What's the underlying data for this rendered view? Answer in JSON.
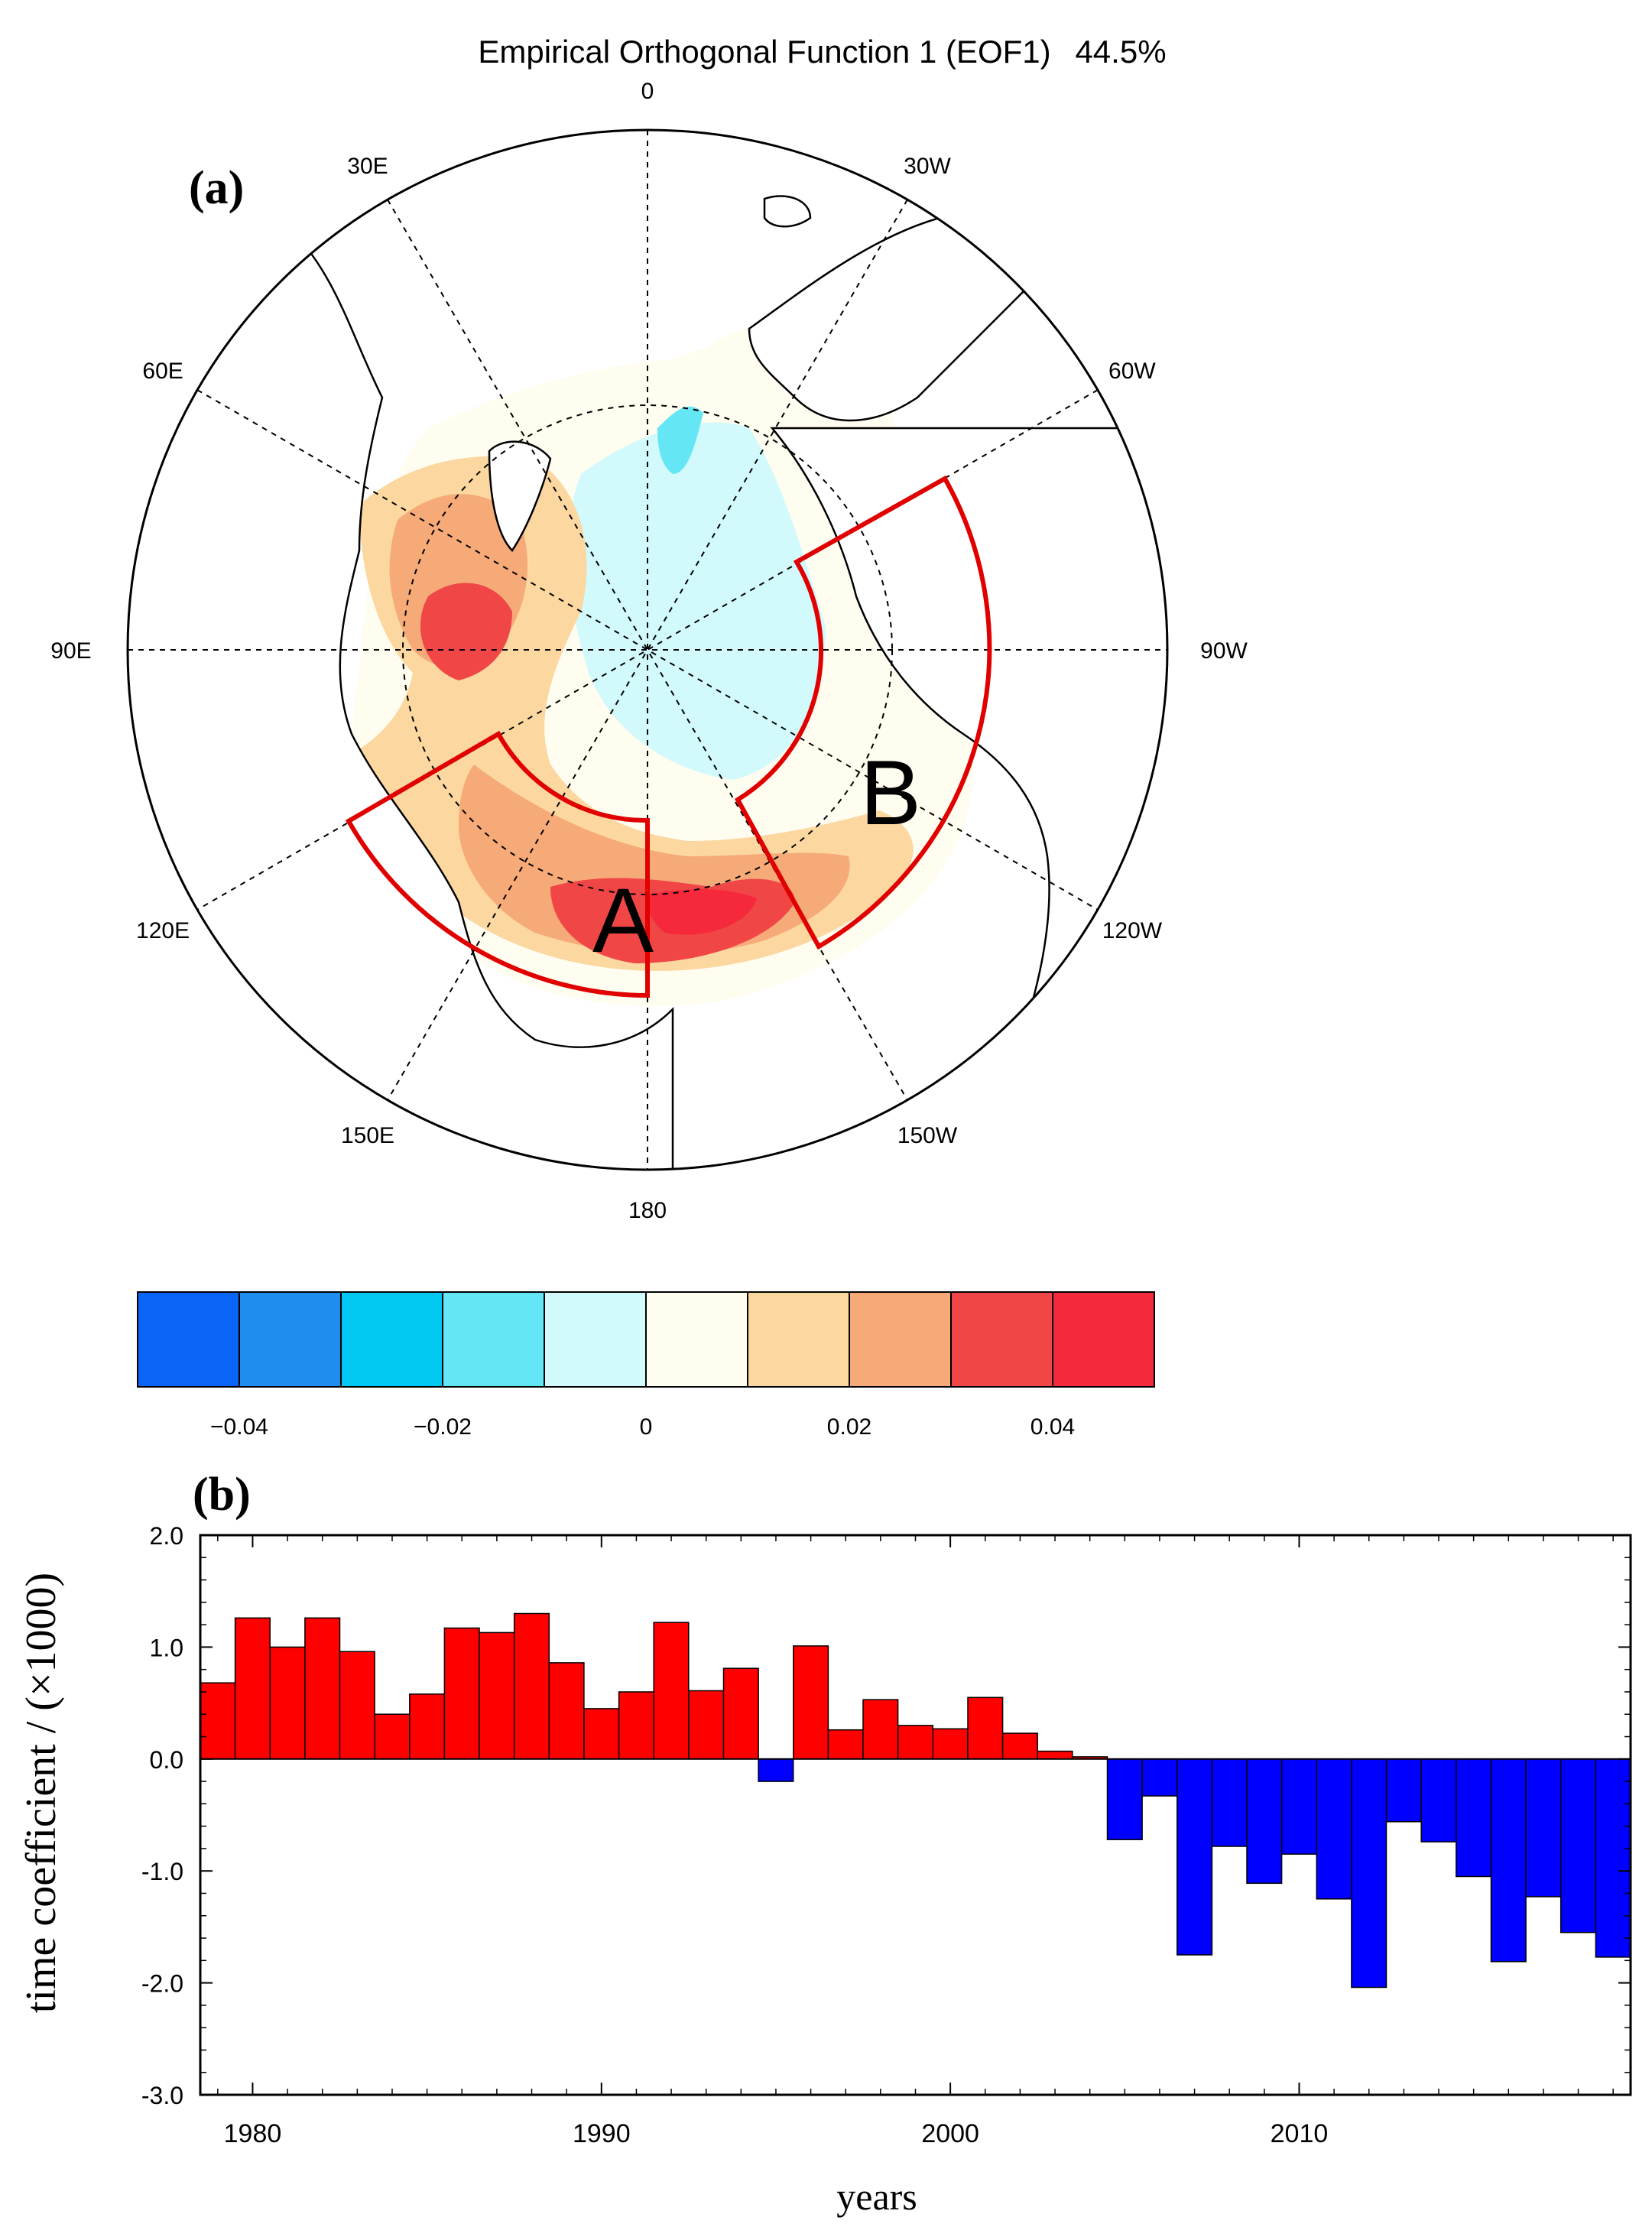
{
  "figure": {
    "title": "Empirical Orthogonal Function 1 (EOF1)",
    "variance": "44.5%"
  },
  "chart_data": [
    {
      "type": "heatmap",
      "panel_label": "(a)",
      "projection": "north-polar-stereographic",
      "title": "Empirical Orthogonal Function 1 (EOF1)",
      "explained_variance": "44.5%",
      "longitude_labels": [
        "0",
        "30W",
        "60W",
        "90W",
        "120W",
        "150W",
        "180",
        "150E",
        "120E",
        "90E",
        "60E",
        "30E"
      ],
      "regions": [
        {
          "name": "A",
          "lon_range": [
            110,
            180
          ],
          "lat_range": [
            66,
            75
          ]
        },
        {
          "name": "B",
          "lon_range": [
            -160,
            -100
          ],
          "lat_range": [
            60,
            75
          ]
        }
      ],
      "colorbar": {
        "levels": [
          -0.05,
          -0.04,
          -0.03,
          -0.02,
          -0.01,
          0,
          0.01,
          0.02,
          0.03,
          0.04,
          0.05
        ],
        "colors": [
          "#0a64f5",
          "#1f8cf0",
          "#00c8f0",
          "#64e6f5",
          "#d2fafc",
          "#fffcf0",
          "#fcd7a0",
          "#f5aa78",
          "#f04646",
          "#f5283c"
        ],
        "tick_labels": [
          "-0.04",
          "-0.02",
          "0",
          "0.02",
          "0.04"
        ],
        "tick_values": [
          -0.04,
          -0.02,
          0,
          0.02,
          0.04
        ]
      }
    },
    {
      "type": "bar",
      "panel_label": "(b)",
      "xlabel": "years",
      "ylabel": "time coefficient / (×1000)",
      "xlim": [
        1978.5,
        2019.5
      ],
      "ylim": [
        -3.0,
        2.0
      ],
      "xticks": [
        "1980",
        "1990",
        "2000",
        "2010"
      ],
      "xtick_values": [
        1980,
        1990,
        2000,
        2010
      ],
      "yticks": [
        "2.0",
        "1.0",
        "0.0",
        "-1.0",
        "-2.0",
        "-3.0"
      ],
      "ytick_values": [
        2.0,
        1.0,
        0.0,
        -1.0,
        -2.0,
        -3.0
      ],
      "positive_color": "#ff0000",
      "negative_color": "#0000ff",
      "years": [
        1979,
        1980,
        1981,
        1982,
        1983,
        1984,
        1985,
        1986,
        1987,
        1988,
        1989,
        1990,
        1991,
        1992,
        1993,
        1994,
        1995,
        1996,
        1997,
        1998,
        1999,
        2000,
        2001,
        2002,
        2003,
        2004,
        2005,
        2006,
        2007,
        2008,
        2009,
        2010,
        2011,
        2012,
        2013,
        2014,
        2015,
        2016,
        2017,
        2018,
        2019
      ],
      "values": [
        0.68,
        1.26,
        1.0,
        1.26,
        0.96,
        0.4,
        0.58,
        1.17,
        1.13,
        1.3,
        0.86,
        0.45,
        0.6,
        1.22,
        0.61,
        0.81,
        -0.2,
        1.01,
        0.26,
        0.53,
        0.3,
        0.27,
        0.55,
        0.23,
        0.07,
        0.02,
        -0.72,
        -0.33,
        -1.75,
        -0.78,
        -1.11,
        -0.85,
        -1.25,
        -2.04,
        -0.56,
        -0.74,
        -1.05,
        -1.81,
        -1.23,
        -1.55,
        -1.77
      ]
    }
  ]
}
